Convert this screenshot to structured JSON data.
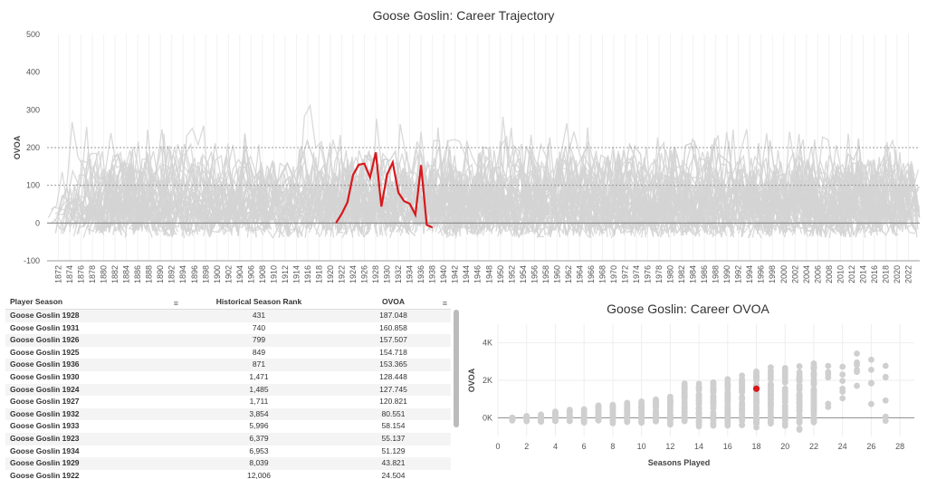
{
  "top": {
    "title": "Goose Goslin: Career Trajectory",
    "ylabel": "OVOA"
  },
  "scatter": {
    "title": "Goose Goslin: Career OVOA",
    "xlabel": "Seasons Played",
    "ylabel": "OVOA"
  },
  "table": {
    "headers": [
      "Player Season",
      "Historical Season Rank",
      "OVOA"
    ],
    "rows": [
      [
        "Goose Goslin 1928",
        "431",
        "187.048"
      ],
      [
        "Goose Goslin 1931",
        "740",
        "160.858"
      ],
      [
        "Goose Goslin 1926",
        "799",
        "157.507"
      ],
      [
        "Goose Goslin 1925",
        "849",
        "154.718"
      ],
      [
        "Goose Goslin 1936",
        "871",
        "153.365"
      ],
      [
        "Goose Goslin 1930",
        "1,471",
        "128.448"
      ],
      [
        "Goose Goslin 1924",
        "1,485",
        "127.745"
      ],
      [
        "Goose Goslin 1927",
        "1,711",
        "120.821"
      ],
      [
        "Goose Goslin 1932",
        "3,854",
        "80.551"
      ],
      [
        "Goose Goslin 1933",
        "5,996",
        "58.154"
      ],
      [
        "Goose Goslin 1923",
        "6,379",
        "55.137"
      ],
      [
        "Goose Goslin 1934",
        "6,953",
        "51.129"
      ],
      [
        "Goose Goslin 1929",
        "8,039",
        "43.821"
      ],
      [
        "Goose Goslin 1922",
        "12,006",
        "24.504"
      ]
    ]
  },
  "colors": {
    "highlight": "#d7191c",
    "background_lines": "#d3d3d3"
  },
  "chart_data": [
    {
      "type": "line",
      "title": "Goose Goslin: Career Trajectory",
      "ylabel": "OVOA",
      "xlabel": "",
      "xlim": [
        1870,
        2024
      ],
      "ylim": [
        -100,
        500
      ],
      "yticks": [
        -100,
        0,
        100,
        200,
        300,
        400,
        500
      ],
      "xticks": [
        "1872",
        "1874",
        "1876",
        "1878",
        "1880",
        "1882",
        "1884",
        "1886",
        "1888",
        "1890",
        "1892",
        "1894",
        "1896",
        "1898",
        "1900",
        "1902",
        "1904",
        "1906",
        "1908",
        "1910",
        "1912",
        "1914",
        "1916",
        "1918",
        "1920",
        "1922",
        "1924",
        "1926",
        "1928",
        "1930",
        "1932",
        "1934",
        "1936",
        "1938",
        "1940",
        "1942",
        "1944",
        "1946",
        "1948",
        "1950",
        "1952",
        "1954",
        "1956",
        "1958",
        "1960",
        "1962",
        "1964",
        "1966",
        "1968",
        "1970",
        "1972",
        "1974",
        "1976",
        "1978",
        "1980",
        "1982",
        "1984",
        "1986",
        "1988",
        "1990",
        "1992",
        "1994",
        "1996",
        "1998",
        "2000",
        "2002",
        "2004",
        "2006",
        "2008",
        "2010",
        "2012",
        "2014",
        "2016",
        "2018",
        "2020",
        "2022"
      ],
      "reference_lines": [
        0,
        100,
        200
      ],
      "series": [
        {
          "name": "Goose Goslin",
          "x": [
            1921,
            1922,
            1923,
            1924,
            1925,
            1926,
            1927,
            1928,
            1929,
            1930,
            1931,
            1932,
            1933,
            1934,
            1935,
            1936,
            1937,
            1938
          ],
          "y": [
            0,
            24.504,
            55.137,
            127.745,
            154.718,
            157.507,
            120.821,
            187.048,
            43.821,
            128.448,
            160.858,
            80.551,
            58.154,
            51.129,
            22,
            153.365,
            -5,
            -12
          ]
        }
      ]
    },
    {
      "type": "scatter",
      "title": "Goose Goslin: Career OVOA",
      "xlabel": "Seasons Played",
      "ylabel": "OVOA",
      "xlim": [
        0,
        29
      ],
      "ylim": [
        -1000,
        5000
      ],
      "xticks": [
        0,
        2,
        4,
        6,
        8,
        10,
        12,
        14,
        16,
        18,
        20,
        22,
        24,
        26,
        28
      ],
      "yticks": [
        {
          "v": 0,
          "label": "0K"
        },
        {
          "v": 2000,
          "label": "2K"
        },
        {
          "v": 4000,
          "label": "4K"
        }
      ],
      "highlight": {
        "x": 18,
        "y": 1550
      }
    }
  ]
}
